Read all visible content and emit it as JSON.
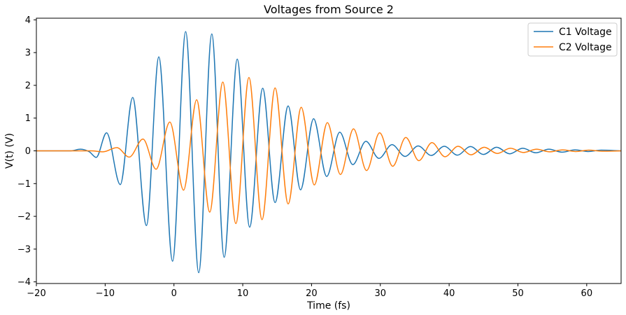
{
  "chart_data": {
    "type": "line",
    "title": "Voltages from Source 2",
    "xlabel": "Time (fs)",
    "ylabel": "V(t) (V)",
    "xlim": [
      -20,
      65
    ],
    "ylim": [
      -4.05,
      4.05
    ],
    "xticks": [
      -20,
      -10,
      0,
      10,
      20,
      30,
      40,
      50,
      60
    ],
    "yticks": [
      -4,
      -3,
      -2,
      -1,
      0,
      1,
      2,
      3,
      4
    ],
    "grid": false,
    "legend_position": "top-right",
    "series": [
      {
        "name": "C1 Voltage",
        "color": "#1f77b4",
        "x": [
          -20,
          -15,
          -13.6,
          -12.3,
          -11.3,
          -9.8,
          -7.8,
          -6,
          -4,
          -2.2,
          -0.2,
          1.7,
          3.6,
          5.5,
          7.3,
          9.2,
          11,
          12.9,
          14.7,
          16.6,
          18.4,
          20.3,
          22.2,
          24.1,
          26,
          27.9,
          29.8,
          31.7,
          33.6,
          35.5,
          37.4,
          39.3,
          41.2,
          43.1,
          45,
          46.9,
          48.8,
          50.7,
          52.6,
          54.5,
          56.4,
          58.3,
          60.2,
          62.1,
          65
        ],
        "y": [
          0,
          0,
          0.05,
          -0.03,
          -0.2,
          0.55,
          -1.03,
          1.63,
          -2.28,
          2.87,
          -3.37,
          3.64,
          -3.72,
          3.57,
          -3.25,
          2.8,
          -2.33,
          1.91,
          -1.58,
          1.37,
          -1.19,
          0.98,
          -0.78,
          0.57,
          -0.42,
          0.29,
          -0.23,
          0.19,
          -0.17,
          0.15,
          -0.14,
          0.14,
          -0.13,
          0.13,
          -0.11,
          0.11,
          -0.09,
          0.08,
          -0.06,
          0.05,
          -0.04,
          0.03,
          -0.02,
          0.02,
          0
        ]
      },
      {
        "name": "C2 Voltage",
        "color": "#ff7f0e",
        "x": [
          -20,
          -12,
          -10.3,
          -8.3,
          -6.5,
          -4.5,
          -2.6,
          -0.6,
          1.4,
          3.3,
          5.2,
          7.1,
          9,
          10.9,
          12.8,
          14.7,
          16.6,
          18.5,
          20.4,
          22.3,
          24.2,
          26.1,
          28,
          29.9,
          31.8,
          33.7,
          35.6,
          37.5,
          39.4,
          41.3,
          43.2,
          45.1,
          47,
          48.9,
          50.8,
          52.7,
          54.6,
          56.5,
          58.4,
          60.3,
          62.2,
          65
        ],
        "y": [
          0,
          0,
          -0.03,
          0.1,
          -0.19,
          0.36,
          -0.56,
          0.88,
          -1.2,
          1.56,
          -1.87,
          2.1,
          -2.22,
          2.24,
          -2.1,
          1.92,
          -1.62,
          1.33,
          -1.04,
          0.86,
          -0.72,
          0.67,
          -0.6,
          0.55,
          -0.47,
          0.41,
          -0.3,
          0.25,
          -0.18,
          0.14,
          -0.12,
          0.11,
          -0.08,
          0.08,
          -0.05,
          0.05,
          -0.03,
          0.03,
          -0.02,
          0.02,
          -0.01,
          0
        ]
      }
    ]
  }
}
